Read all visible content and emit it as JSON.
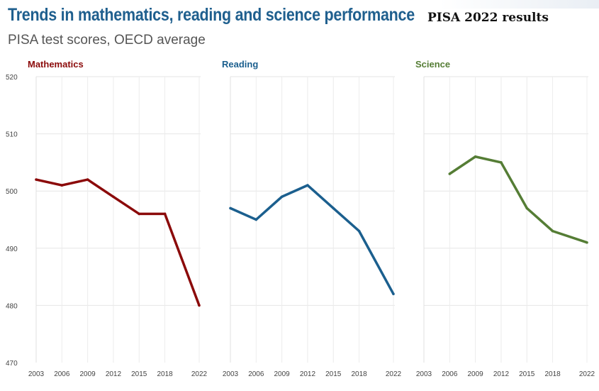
{
  "header": {
    "title": "Trends in mathematics, reading and science performance",
    "badge": "PISA 2022 results",
    "subtitle": "PISA test scores, OECD average"
  },
  "chart_data": [
    {
      "type": "line",
      "title": "Mathematics",
      "color": "#8b0a0a",
      "x": [
        2003,
        2006,
        2009,
        2012,
        2015,
        2018,
        2022
      ],
      "values": [
        502,
        501,
        502,
        499,
        496,
        496,
        480
      ],
      "xticks": [
        2003,
        2006,
        2009,
        2012,
        2015,
        2018,
        2022
      ],
      "yticks": [
        470,
        480,
        490,
        500,
        510,
        520
      ],
      "ylim": [
        470,
        520
      ],
      "xlim": [
        2003,
        2022
      ]
    },
    {
      "type": "line",
      "title": "Reading",
      "color": "#1b5f8e",
      "x": [
        2003,
        2006,
        2009,
        2012,
        2015,
        2018,
        2022
      ],
      "values": [
        497,
        495,
        499,
        501,
        497,
        493,
        482
      ],
      "xticks": [
        2003,
        2006,
        2009,
        2012,
        2015,
        2018,
        2022
      ],
      "ylim": [
        470,
        520
      ],
      "xlim": [
        2003,
        2022
      ]
    },
    {
      "type": "line",
      "title": "Science",
      "color": "#557d35",
      "x": [
        2006,
        2009,
        2012,
        2015,
        2018,
        2022
      ],
      "values": [
        503,
        506,
        505,
        497,
        493,
        491
      ],
      "xticks": [
        2003,
        2006,
        2009,
        2012,
        2015,
        2018,
        2022
      ],
      "ylim": [
        470,
        520
      ],
      "xlim": [
        2003,
        2022
      ]
    }
  ]
}
